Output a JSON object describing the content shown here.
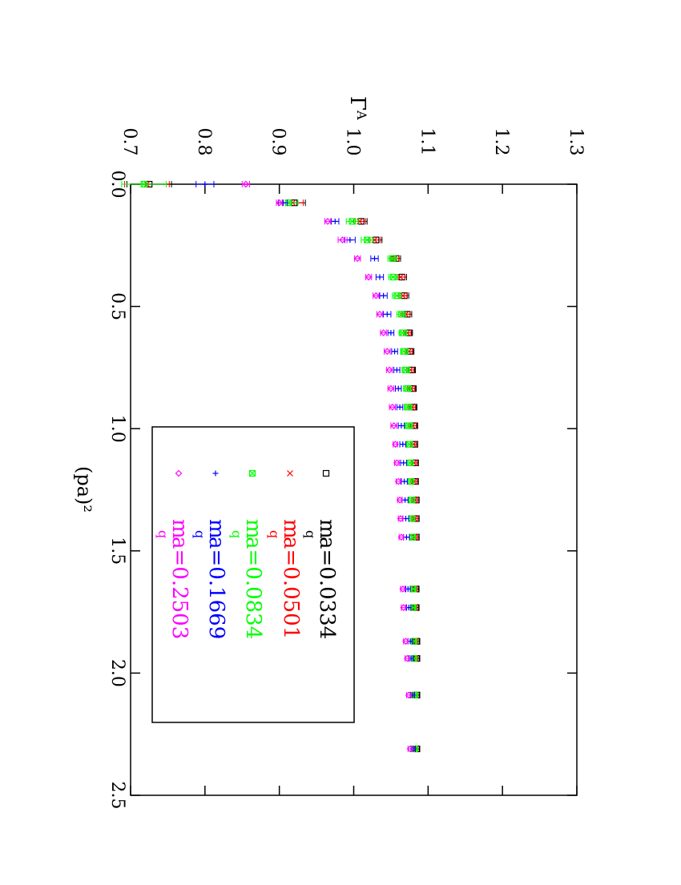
{
  "chart_data": {
    "type": "scatter",
    "orientation": "rotated-90-clockwise",
    "title": "",
    "xlabel": "(pa)²",
    "ylabel_symbol": "Γ",
    "ylabel_sub": "A",
    "xlim": [
      0.0,
      2.5
    ],
    "ylim": [
      0.7,
      1.3
    ],
    "x_ticks": [
      "0.0",
      "0.5",
      "1.0",
      "1.5",
      "2.0",
      "2.5"
    ],
    "y_ticks": [
      "0.7",
      "0.8",
      "0.9",
      "1.0",
      "1.1",
      "1.2",
      "1.3"
    ],
    "grid": false,
    "legend_position": "lower-left",
    "x": [
      0.0,
      0.076,
      0.152,
      0.228,
      0.304,
      0.38,
      0.456,
      0.532,
      0.608,
      0.684,
      0.76,
      0.836,
      0.912,
      0.988,
      1.064,
      1.14,
      1.216,
      1.292,
      1.368,
      1.444,
      1.656,
      1.732,
      1.87,
      1.94,
      2.09,
      2.31
    ],
    "series": [
      {
        "name_main": "m",
        "name_sub": "q",
        "name_rest": " a=0.0334",
        "marker": "square",
        "color": "#000000",
        "y": [
          0.725,
          0.92,
          1.01,
          1.03,
          1.057,
          1.065,
          1.068,
          1.072,
          1.074,
          1.076,
          1.078,
          1.079,
          1.08,
          1.081,
          1.082,
          1.083,
          1.083,
          1.084,
          1.084,
          1.084,
          1.084,
          1.084,
          1.085,
          1.085,
          1.085,
          1.085
        ],
        "err": [
          0.03,
          0.015,
          0.008,
          0.008,
          0.006,
          0.006,
          0.006,
          0.006,
          0.005,
          0.005,
          0.005,
          0.005,
          0.005,
          0.005,
          0.004,
          0.004,
          0.004,
          0.004,
          0.004,
          0.004,
          0.003,
          0.003,
          0.003,
          0.003,
          0.003,
          0.003
        ]
      },
      {
        "name_main": "m",
        "name_sub": "q",
        "name_rest": " a=0.0501",
        "marker": "x",
        "color": "#ff0000",
        "y": [
          0.722,
          0.918,
          1.008,
          1.028,
          1.055,
          1.063,
          1.066,
          1.07,
          1.072,
          1.074,
          1.076,
          1.077,
          1.078,
          1.079,
          1.08,
          1.081,
          1.081,
          1.082,
          1.082,
          1.082,
          1.082,
          1.082,
          1.083,
          1.083,
          1.083,
          1.083
        ],
        "err": [
          0.03,
          0.014,
          0.008,
          0.008,
          0.006,
          0.006,
          0.006,
          0.006,
          0.005,
          0.005,
          0.005,
          0.005,
          0.005,
          0.005,
          0.004,
          0.004,
          0.004,
          0.004,
          0.004,
          0.004,
          0.003,
          0.003,
          0.003,
          0.003,
          0.003,
          0.003
        ]
      },
      {
        "name_main": "m",
        "name_sub": "q",
        "name_rest": " a=0.0834",
        "marker": "boxed-x",
        "color": "#00ff00",
        "y": [
          0.718,
          0.912,
          0.998,
          1.018,
          1.052,
          1.053,
          1.058,
          1.064,
          1.066,
          1.068,
          1.07,
          1.072,
          1.073,
          1.074,
          1.075,
          1.076,
          1.077,
          1.078,
          1.078,
          1.079,
          1.08,
          1.08,
          1.081,
          1.081,
          1.082,
          1.082
        ],
        "err": [
          0.03,
          0.013,
          0.008,
          0.008,
          0.006,
          0.006,
          0.006,
          0.006,
          0.005,
          0.005,
          0.005,
          0.005,
          0.005,
          0.005,
          0.004,
          0.004,
          0.004,
          0.004,
          0.004,
          0.004,
          0.003,
          0.003,
          0.003,
          0.003,
          0.003,
          0.003
        ]
      },
      {
        "name_main": "m",
        "name_sub": "q",
        "name_rest": " a=0.1669",
        "marker": "plus",
        "color": "#0000ff",
        "y": [
          0.8,
          0.905,
          0.975,
          0.995,
          1.028,
          1.035,
          1.04,
          1.045,
          1.05,
          1.055,
          1.058,
          1.06,
          1.062,
          1.064,
          1.066,
          1.067,
          1.068,
          1.069,
          1.07,
          1.071,
          1.073,
          1.074,
          1.076,
          1.077,
          1.079,
          1.08
        ],
        "err": [
          0.012,
          0.006,
          0.005,
          0.007,
          0.005,
          0.005,
          0.005,
          0.005,
          0.004,
          0.004,
          0.004,
          0.004,
          0.004,
          0.004,
          0.004,
          0.004,
          0.004,
          0.004,
          0.004,
          0.004,
          0.003,
          0.003,
          0.003,
          0.003,
          0.003,
          0.003
        ]
      },
      {
        "name_main": "m",
        "name_sub": "q",
        "name_rest": " a=0.2503",
        "marker": "diamond",
        "color": "#ff00ff",
        "y": [
          0.855,
          0.9,
          0.965,
          0.985,
          1.005,
          1.02,
          1.03,
          1.035,
          1.04,
          1.045,
          1.048,
          1.05,
          1.052,
          1.054,
          1.056,
          1.058,
          1.06,
          1.062,
          1.063,
          1.064,
          1.066,
          1.067,
          1.07,
          1.072,
          1.074,
          1.076
        ],
        "err": [
          0.005,
          0.004,
          0.004,
          0.006,
          0.004,
          0.004,
          0.004,
          0.004,
          0.004,
          0.004,
          0.004,
          0.004,
          0.004,
          0.004,
          0.003,
          0.003,
          0.003,
          0.003,
          0.003,
          0.003,
          0.003,
          0.003,
          0.003,
          0.003,
          0.003,
          0.003
        ]
      }
    ]
  }
}
